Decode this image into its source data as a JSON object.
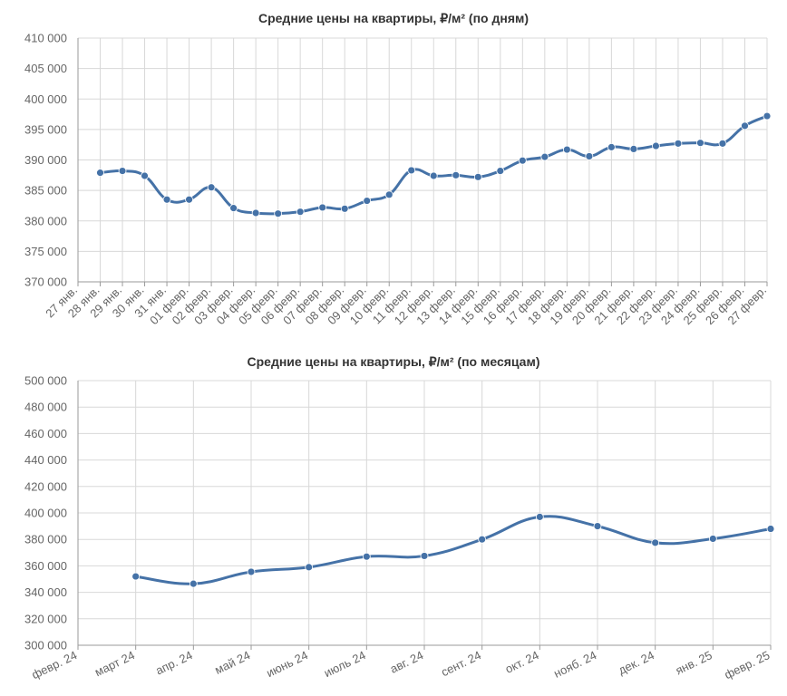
{
  "colors": {
    "line": "#4572a7",
    "grid": "#d8d8d8",
    "axis": "#9a9a9a",
    "text": "#666666"
  },
  "chart_data": [
    {
      "type": "line",
      "title": "Средние цены на квартиры, ₽/м² (по дням)",
      "xlabel": "",
      "ylabel": "",
      "categories": [
        "27 янв.",
        "28 янв.",
        "29 янв.",
        "30 янв.",
        "31 янв.",
        "01 февр.",
        "02 февр.",
        "03 февр.",
        "04 февр.",
        "05 февр.",
        "06 февр.",
        "07 февр.",
        "08 февр.",
        "09 февр.",
        "10 февр.",
        "11 февр.",
        "12 февр.",
        "13 февр.",
        "14 февр.",
        "15 февр.",
        "16 февр.",
        "17 февр.",
        "18 февр.",
        "19 февр.",
        "20 февр.",
        "21 февр.",
        "22 февр.",
        "23 февр.",
        "24 февр.",
        "25 февр.",
        "26 февр.",
        "27 февр."
      ],
      "x_ticks": [
        "27 янв.",
        "28 янв.",
        "29 янв.",
        "30 янв.",
        "31 янв.",
        "01 февр.",
        "02 февр.",
        "03 февр.",
        "04 февр.",
        "05 февр.",
        "06 февр.",
        "07 февр.",
        "08 февр.",
        "09 февр.",
        "10 февр.",
        "11 февр.",
        "12 февр.",
        "13 февр.",
        "14 февр.",
        "15 февр.",
        "16 февр.",
        "17 февр.",
        "18 февр.",
        "19 февр.",
        "20 февр.",
        "21 февр.",
        "22 февр.",
        "23 февр.",
        "24 февр.",
        "25 февр.",
        "26 февр.",
        "27 февр."
      ],
      "y_ticks": [
        "370 000",
        "375 000",
        "380 000",
        "385 000",
        "390 000",
        "395 000",
        "400 000",
        "405 000",
        "410 000"
      ],
      "ylim": [
        370000,
        410000
      ],
      "points": [
        {
          "x": "28 янв.",
          "y": 387900
        },
        {
          "x": "29 янв.",
          "y": 388200
        },
        {
          "x": "30 янв.",
          "y": 387400
        },
        {
          "x": "31 янв.",
          "y": 383500
        },
        {
          "x": "01 февр.",
          "y": 383500
        },
        {
          "x": "02 февр.",
          "y": 385500
        },
        {
          "x": "03 февр.",
          "y": 382100
        },
        {
          "x": "04 февр.",
          "y": 381300
        },
        {
          "x": "05 февр.",
          "y": 381200
        },
        {
          "x": "06 февр.",
          "y": 381500
        },
        {
          "x": "07 февр.",
          "y": 382200
        },
        {
          "x": "08 февр.",
          "y": 382000
        },
        {
          "x": "09 февр.",
          "y": 383300
        },
        {
          "x": "10 февр.",
          "y": 384300
        },
        {
          "x": "11 февр.",
          "y": 388300
        },
        {
          "x": "12 февр.",
          "y": 387400
        },
        {
          "x": "13 февр.",
          "y": 387500
        },
        {
          "x": "14 февр.",
          "y": 387200
        },
        {
          "x": "15 февр.",
          "y": 388200
        },
        {
          "x": "16 февр.",
          "y": 389900
        },
        {
          "x": "17 февр.",
          "y": 390500
        },
        {
          "x": "18 февр.",
          "y": 391700
        },
        {
          "x": "19 февр.",
          "y": 390600
        },
        {
          "x": "20 февр.",
          "y": 392100
        },
        {
          "x": "21 февр.",
          "y": 391800
        },
        {
          "x": "22 февр.",
          "y": 392300
        },
        {
          "x": "23 февр.",
          "y": 392700
        },
        {
          "x": "24 февр.",
          "y": 392800
        },
        {
          "x": "25 февр.",
          "y": 392700
        },
        {
          "x": "26 февр.",
          "y": 395600
        },
        {
          "x": "27 февр.",
          "y": 397200
        }
      ],
      "grid": true,
      "legend": "none"
    },
    {
      "type": "line",
      "title": "Средние цены на квартиры, ₽/м² (по месяцам)",
      "xlabel": "",
      "ylabel": "",
      "categories": [
        "февр. 24",
        "март 24",
        "апр. 24",
        "май 24",
        "июнь 24",
        "июль 24",
        "авг. 24",
        "сент. 24",
        "окт. 24",
        "нояб. 24",
        "дек. 24",
        "янв. 25",
        "февр. 25"
      ],
      "x_ticks": [
        "февр. 24",
        "март 24",
        "апр. 24",
        "май 24",
        "июнь 24",
        "июль 24",
        "авг. 24",
        "сент. 24",
        "окт. 24",
        "нояб. 24",
        "дек. 24",
        "янв. 25",
        "февр. 25"
      ],
      "y_ticks": [
        "300 000",
        "320 000",
        "340 000",
        "360 000",
        "380 000",
        "400 000",
        "420 000",
        "440 000",
        "460 000",
        "480 000",
        "500 000"
      ],
      "ylim": [
        300000,
        500000
      ],
      "points": [
        {
          "x": "март 24",
          "y": 352000
        },
        {
          "x": "апр. 24",
          "y": 346500
        },
        {
          "x": "май 24",
          "y": 355500
        },
        {
          "x": "июнь 24",
          "y": 359000
        },
        {
          "x": "июль 24",
          "y": 367000
        },
        {
          "x": "авг. 24",
          "y": 367500
        },
        {
          "x": "сент. 24",
          "y": 380000
        },
        {
          "x": "окт. 24",
          "y": 397000
        },
        {
          "x": "нояб. 24",
          "y": 390000
        },
        {
          "x": "дек. 24",
          "y": 377500
        },
        {
          "x": "янв. 25",
          "y": 380500
        },
        {
          "x": "февр. 25",
          "y": 388000
        }
      ],
      "grid": true,
      "legend": "none"
    }
  ]
}
